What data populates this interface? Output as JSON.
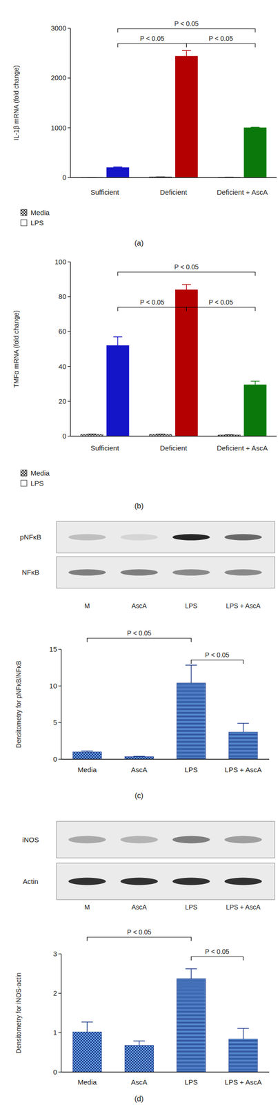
{
  "chart_data": [
    {
      "type": "bar",
      "title": "(a)",
      "y_label": "IL-1β mRNA (fold change)",
      "categories": [
        "Sufficient",
        "Deficient",
        "Deficient + AscA"
      ],
      "series": [
        {
          "name": "Media",
          "color": "#333333",
          "values": [
            1,
            12,
            6
          ],
          "errors": [
            0.5,
            2,
            1
          ]
        },
        {
          "name": "LPS",
          "color": "#ffffff",
          "colors": [
            "#1414c8",
            "#b40000",
            "#0a780a"
          ],
          "values": [
            200,
            2440,
            1000
          ],
          "errors": [
            12,
            110,
            10
          ]
        }
      ],
      "ylim": [
        0,
        3000
      ],
      "yticks": [
        0,
        1000,
        2000,
        3000
      ],
      "legend": "bottom",
      "annotations": [
        {
          "text": "P < 0.05",
          "between": [
            0,
            2
          ]
        },
        {
          "text": "P < 0.05",
          "between": [
            0,
            1
          ]
        },
        {
          "text": "P < 0.05",
          "between": [
            1,
            2
          ]
        }
      ]
    },
    {
      "type": "bar",
      "title": "(b)",
      "y_label": "TMFα mRNA (fold change)",
      "categories": [
        "Sufficient",
        "Deficient",
        "Deficient + AscA"
      ],
      "series": [
        {
          "name": "Media",
          "color": "#333333",
          "values": [
            1,
            1,
            0.7
          ],
          "errors": [
            0.2,
            0.2,
            0.1
          ]
        },
        {
          "name": "LPS",
          "color": "#ffffff",
          "colors": [
            "#1414c8",
            "#b40000",
            "#0a780a"
          ],
          "values": [
            52,
            84,
            29.5
          ],
          "errors": [
            5,
            3,
            2
          ]
        }
      ],
      "ylim": [
        0,
        100
      ],
      "yticks": [
        0,
        20,
        40,
        60,
        80,
        100
      ],
      "legend": "bottom",
      "annotations": [
        {
          "text": "P < 0.05",
          "between": [
            0,
            2
          ]
        },
        {
          "text": "P < 0.05",
          "between": [
            0,
            1
          ]
        },
        {
          "text": "P < 0.05",
          "between": [
            1,
            2
          ]
        }
      ]
    },
    {
      "type": "bar",
      "title": "(c)",
      "y_label": "Densitometry for pNFκB/NFκB",
      "categories": [
        "Media",
        "AscA",
        "LPS",
        "LPS + AscA"
      ],
      "values": [
        1.0,
        0.35,
        10.4,
        3.7
      ],
      "errors": [
        0.12,
        0.05,
        2.45,
        1.2
      ],
      "color": "#6ea6e6",
      "ylim": [
        0,
        15
      ],
      "yticks": [
        0,
        5,
        10,
        15
      ],
      "blot_rows": [
        "pNFκB",
        "NFκB"
      ],
      "blot_lanes": [
        "M",
        "AscA",
        "LPS",
        "LPS + AscA"
      ],
      "annotations": [
        {
          "text": "P < 0.05",
          "between": [
            0,
            2
          ]
        },
        {
          "text": "P < 0.05",
          "between": [
            2,
            3
          ]
        }
      ]
    },
    {
      "type": "bar",
      "title": "(d)",
      "y_label": "Densitometry for iNOS-actin",
      "categories": [
        "Media",
        "AscA",
        "LPS",
        "LPS + AscA"
      ],
      "values": [
        1.02,
        0.68,
        2.37,
        0.84
      ],
      "errors": [
        0.25,
        0.11,
        0.25,
        0.27
      ],
      "color": "#6ea6e6",
      "ylim": [
        0,
        3
      ],
      "yticks": [
        0,
        1,
        2,
        3
      ],
      "blot_rows": [
        "iNOS",
        "Actin"
      ],
      "blot_lanes": [
        "M",
        "AscA",
        "LPS",
        "LPS + AscA"
      ],
      "annotations": [
        {
          "text": "P < 0.05",
          "between": [
            0,
            2
          ]
        },
        {
          "text": "P < 0.05",
          "between": [
            2,
            3
          ]
        }
      ]
    }
  ]
}
